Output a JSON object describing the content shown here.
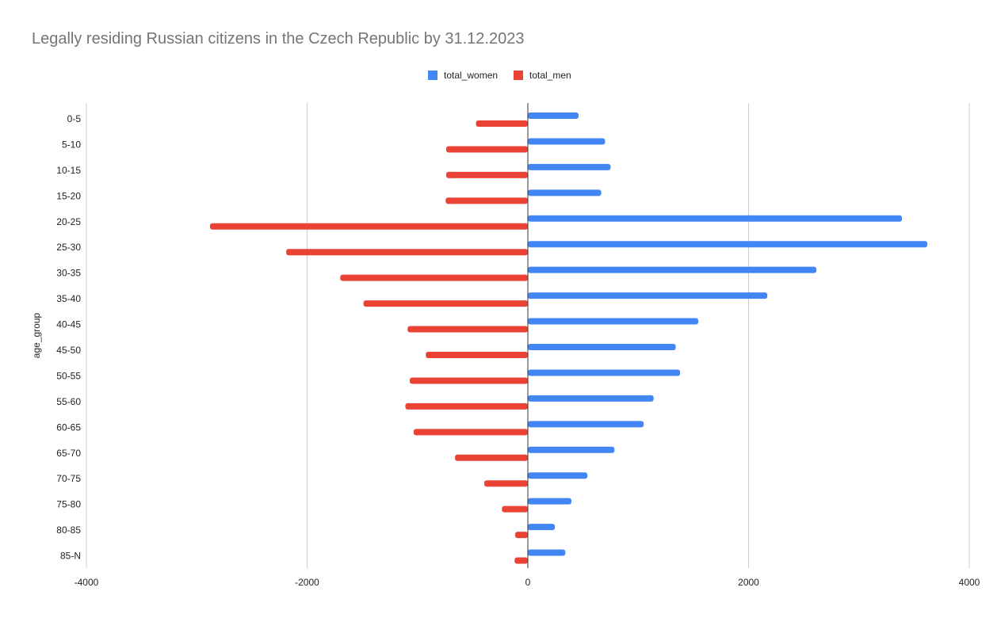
{
  "chart_data": {
    "type": "bar",
    "orientation": "horizontal",
    "title": "Legally residing Russian citizens in the Czech Republic by 31.12.2023",
    "ylabel": "age_group",
    "xlabel": "",
    "categories": [
      "0-5",
      "5-10",
      "10-15",
      "15-20",
      "20-25",
      "25-30",
      "30-35",
      "35-40",
      "40-45",
      "45-50",
      "50-55",
      "55-60",
      "60-65",
      "65-70",
      "70-75",
      "75-80",
      "80-85",
      "85-N"
    ],
    "series": [
      {
        "name": "total_women",
        "color": "#4285f4",
        "values": [
          460,
          700,
          750,
          665,
          3390,
          3620,
          2615,
          2170,
          1545,
          1340,
          1380,
          1140,
          1050,
          785,
          540,
          395,
          245,
          340
        ]
      },
      {
        "name": "total_men",
        "color": "#ea4335",
        "values": [
          -470,
          -740,
          -740,
          -745,
          -2880,
          -2190,
          -1700,
          -1490,
          -1090,
          -925,
          -1070,
          -1110,
          -1035,
          -660,
          -395,
          -235,
          -115,
          -120
        ]
      }
    ],
    "xlim": [
      -4000,
      4000
    ],
    "xticks": [
      -4000,
      -2000,
      0,
      2000,
      4000
    ],
    "xtick_labels": [
      "-4000",
      "-2000",
      "0",
      "2000",
      "4000"
    ],
    "grid": true,
    "legend_position": "top"
  }
}
